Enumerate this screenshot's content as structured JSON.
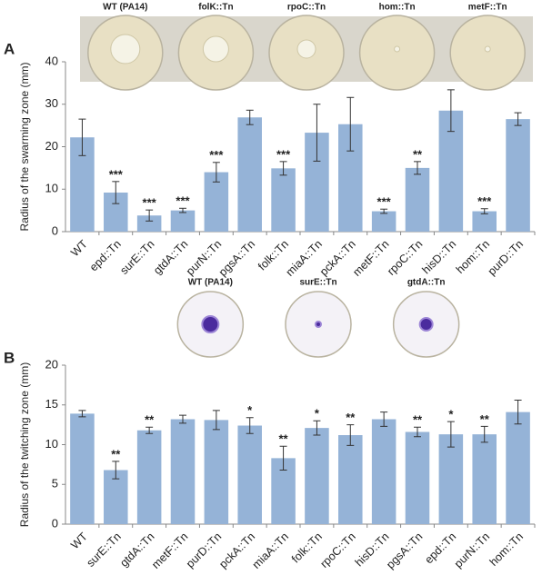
{
  "chart_data": [
    {
      "type": "bar",
      "panel": "A",
      "plates": [
        "WT (PA14)",
        "folK::Tn",
        "rpoC::Tn",
        "hom::Tn",
        "metF::Tn"
      ],
      "y_label": "Radius of the swarming zone (mm)",
      "categories": [
        "WT",
        "epd::Tn",
        "surE::Tn",
        "gtdA::Tn",
        "purN::Tn",
        "pgsA::Tn",
        "folk::Tn",
        "miaA::Tn",
        "pckA::Tn",
        "metF::Tn",
        "rpoC::Tn",
        "hisD::Tn",
        "hom::Tn",
        "purD::Tn"
      ],
      "values": [
        22.2,
        9.2,
        3.8,
        5.0,
        14.0,
        26.9,
        14.9,
        23.3,
        25.3,
        4.8,
        15.0,
        28.5,
        4.8,
        26.5
      ],
      "errors": [
        4.3,
        2.6,
        1.3,
        0.5,
        2.3,
        1.7,
        1.6,
        6.7,
        6.3,
        0.5,
        1.5,
        4.9,
        0.6,
        1.5
      ],
      "significance": [
        null,
        "***",
        "***",
        "***",
        "***",
        null,
        "***",
        null,
        null,
        "***",
        "**",
        null,
        "***",
        null
      ],
      "color": "#95b3d7",
      "ylim": [
        0,
        40
      ],
      "yticks": [
        0,
        10,
        20,
        30,
        40
      ]
    },
    {
      "type": "bar",
      "panel": "B",
      "plates": [
        "WT (PA14)",
        "surE::Tn",
        "gtdA::Tn"
      ],
      "y_label": "Radius of the twitching zone (mm)",
      "categories": [
        "WT",
        "surE::Tn",
        "gtdA::Tn",
        "metF::Tn",
        "purD::Tn",
        "pckA::Tn",
        "miaA::Tn",
        "folk::Tn",
        "rpoC::Tn",
        "hisD::Tn",
        "pgsA::Tn",
        "epd::Tn",
        "purN::Tn",
        "hom::Tn"
      ],
      "values": [
        13.9,
        6.8,
        11.8,
        13.2,
        13.1,
        12.4,
        8.3,
        12.1,
        11.2,
        13.2,
        11.6,
        11.3,
        11.3,
        14.1
      ],
      "errors": [
        0.4,
        1.1,
        0.4,
        0.5,
        1.2,
        1.0,
        1.5,
        0.9,
        1.3,
        0.9,
        0.6,
        1.6,
        1.0,
        1.5
      ],
      "significance": [
        null,
        "**",
        "**",
        null,
        null,
        "*",
        "**",
        "*",
        "**",
        null,
        "**",
        "*",
        "**",
        null
      ],
      "color": "#95b3d7",
      "ylim": [
        0,
        20
      ],
      "yticks": [
        0,
        5,
        10,
        15,
        20
      ]
    }
  ]
}
